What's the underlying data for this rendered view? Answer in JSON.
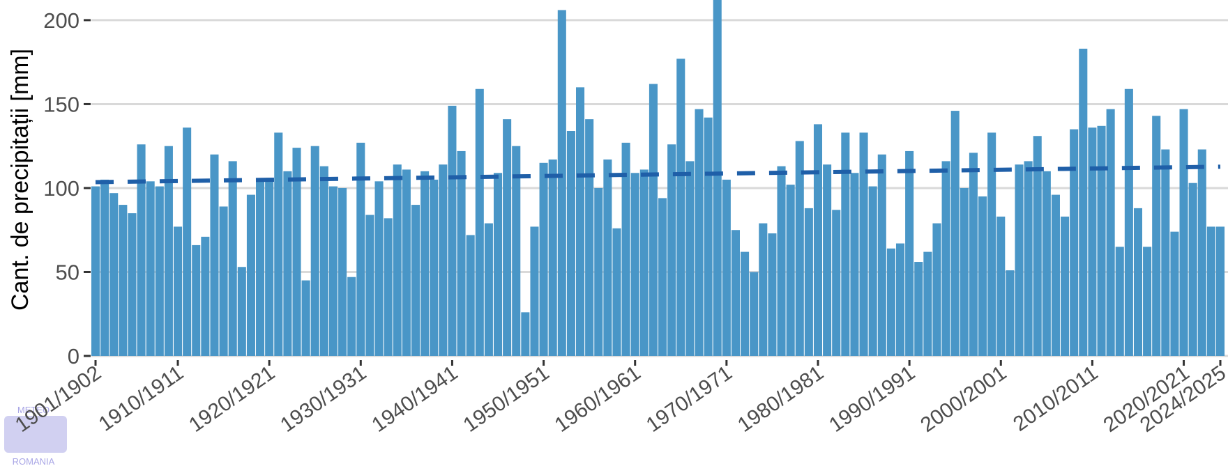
{
  "chart_data": {
    "type": "bar",
    "y_label": "Cant. de precipitații [mm]",
    "categories": [
      "1901/1902",
      null,
      null,
      null,
      null,
      null,
      null,
      null,
      null,
      "1910/1911",
      null,
      null,
      null,
      null,
      null,
      null,
      null,
      null,
      null,
      "1920/1921",
      null,
      null,
      null,
      null,
      null,
      null,
      null,
      null,
      null,
      "1930/1931",
      null,
      null,
      null,
      null,
      null,
      null,
      null,
      null,
      null,
      "1940/1941",
      null,
      null,
      null,
      null,
      null,
      null,
      null,
      null,
      null,
      "1950/1951",
      null,
      null,
      null,
      null,
      null,
      null,
      null,
      null,
      null,
      "1960/1961",
      null,
      null,
      null,
      null,
      null,
      null,
      null,
      null,
      null,
      "1970/1971",
      null,
      null,
      null,
      null,
      null,
      null,
      null,
      null,
      null,
      "1980/1981",
      null,
      null,
      null,
      null,
      null,
      null,
      null,
      null,
      null,
      "1990/1991",
      null,
      null,
      null,
      null,
      null,
      null,
      null,
      null,
      null,
      "2000/2001",
      null,
      null,
      null,
      null,
      null,
      null,
      null,
      null,
      null,
      "2010/2011",
      null,
      null,
      null,
      null,
      null,
      null,
      null,
      null,
      null,
      "2020/2021",
      null,
      null,
      null,
      "2024/2025"
    ],
    "values": [
      101,
      105,
      97,
      90,
      85,
      126,
      104,
      101,
      125,
      77,
      136,
      66,
      71,
      120,
      89,
      116,
      53,
      96,
      104,
      106,
      133,
      110,
      124,
      45,
      125,
      113,
      101,
      100,
      47,
      127,
      84,
      104,
      82,
      114,
      111,
      90,
      110,
      105,
      114,
      149,
      122,
      72,
      159,
      79,
      109,
      141,
      125,
      26,
      77,
      115,
      117,
      206,
      134,
      160,
      141,
      100,
      117,
      76,
      127,
      109,
      111,
      162,
      94,
      126,
      177,
      116,
      147,
      142,
      215,
      105,
      75,
      62,
      50,
      79,
      73,
      113,
      102,
      128,
      88,
      138,
      114,
      87,
      133,
      109,
      133,
      101,
      120,
      64,
      67,
      122,
      56,
      62,
      79,
      116,
      146,
      100,
      121,
      95,
      133,
      83,
      51,
      114,
      116,
      131,
      110,
      96,
      83,
      135,
      183,
      136,
      137,
      147,
      65,
      159,
      88,
      65,
      143,
      123,
      74,
      147,
      103,
      123,
      77,
      77
    ],
    "color": "#4996c7",
    "trend": {
      "values": [
        103.5,
        112.7
      ],
      "color": "#1f5fa8"
    },
    "ylim": [
      0,
      212
    ],
    "yticks": [
      0,
      50,
      100,
      150,
      200
    ],
    "grid": true,
    "logo": {
      "top": "METEO",
      "bottom": "ROMANIA"
    }
  }
}
